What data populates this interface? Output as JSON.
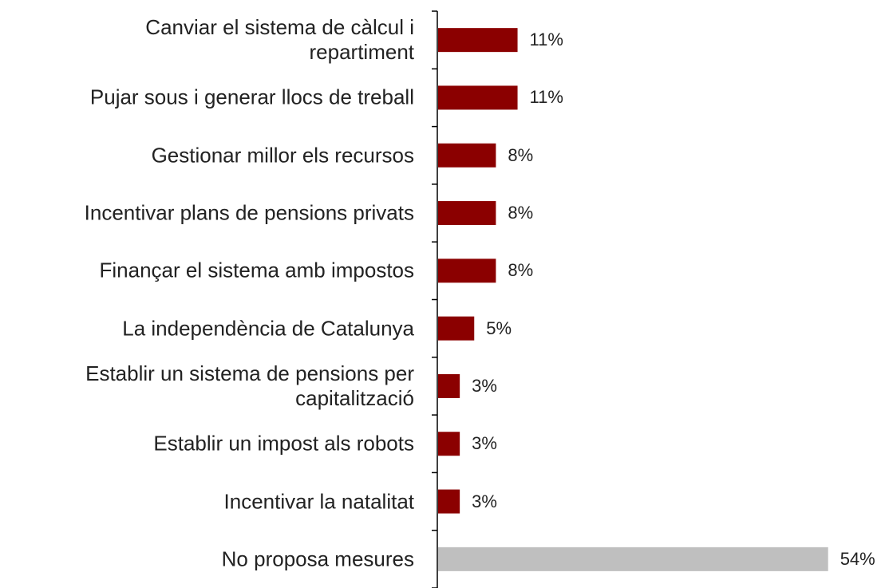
{
  "chart_data": {
    "type": "bar",
    "orientation": "horizontal",
    "categories": [
      "Canviar el sistema de càlcul i\nrepartiment",
      "Pujar sous i generar llocs de treball",
      "Gestionar millor els recursos",
      "Incentivar plans de pensions privats",
      "Finançar el sistema amb impostos",
      "La independència de Catalunya",
      "Establir un sistema de pensions per\ncapitalització",
      "Establir un impost als robots",
      "Incentivar la natalitat",
      "No proposa mesures"
    ],
    "values": [
      11,
      11,
      8,
      8,
      8,
      5,
      3,
      3,
      3,
      54
    ],
    "value_labels": [
      "11%",
      "11%",
      "8%",
      "8%",
      "8%",
      "5%",
      "3%",
      "3%",
      "3%",
      "54%"
    ],
    "colors": [
      "#8b0000",
      "#8b0000",
      "#8b0000",
      "#8b0000",
      "#8b0000",
      "#8b0000",
      "#8b0000",
      "#8b0000",
      "#8b0000",
      "#bfbfbf"
    ]
  }
}
